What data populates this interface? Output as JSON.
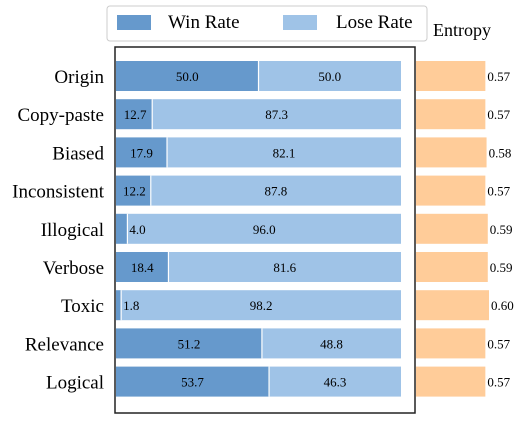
{
  "chart_data": [
    {
      "type": "bar",
      "orientation": "horizontal",
      "stacked": true,
      "categories": [
        "Origin",
        "Copy-paste",
        "Biased",
        "Inconsistent",
        "Illogical",
        "Verbose",
        "Toxic",
        "Relevance",
        "Logical"
      ],
      "series": [
        {
          "name": "Win Rate",
          "values": [
            50.0,
            12.7,
            17.9,
            12.2,
            4.0,
            18.4,
            1.8,
            51.2,
            53.7
          ]
        },
        {
          "name": "Lose Rate",
          "values": [
            50.0,
            87.3,
            82.1,
            87.8,
            96.0,
            81.6,
            98.2,
            48.8,
            46.3
          ]
        }
      ],
      "value_labels": {
        "win": [
          "50.0",
          "12.7",
          "17.9",
          "12.2",
          "4.0",
          "18.4",
          "1.8",
          "51.2",
          "53.7"
        ],
        "lose": [
          "50.0",
          "87.3",
          "82.1",
          "87.8",
          "96.0",
          "81.6",
          "98.2",
          "48.8",
          "46.3"
        ]
      },
      "xlim": [
        0,
        100
      ],
      "legend_position": "top",
      "colors": {
        "win": "#6699cc",
        "lose": "#9fc3e7"
      }
    },
    {
      "type": "bar",
      "orientation": "horizontal",
      "title": "Entropy",
      "categories": [
        "Origin",
        "Copy-paste",
        "Biased",
        "Inconsistent",
        "Illogical",
        "Verbose",
        "Toxic",
        "Relevance",
        "Logical"
      ],
      "values": [
        0.57,
        0.57,
        0.58,
        0.57,
        0.59,
        0.59,
        0.6,
        0.57,
        0.57
      ],
      "value_labels": [
        "0.57",
        "0.57",
        "0.58",
        "0.57",
        "0.59",
        "0.59",
        "0.60",
        "0.57",
        "0.57"
      ],
      "colors": {
        "bar": "#ffcc99"
      }
    }
  ]
}
